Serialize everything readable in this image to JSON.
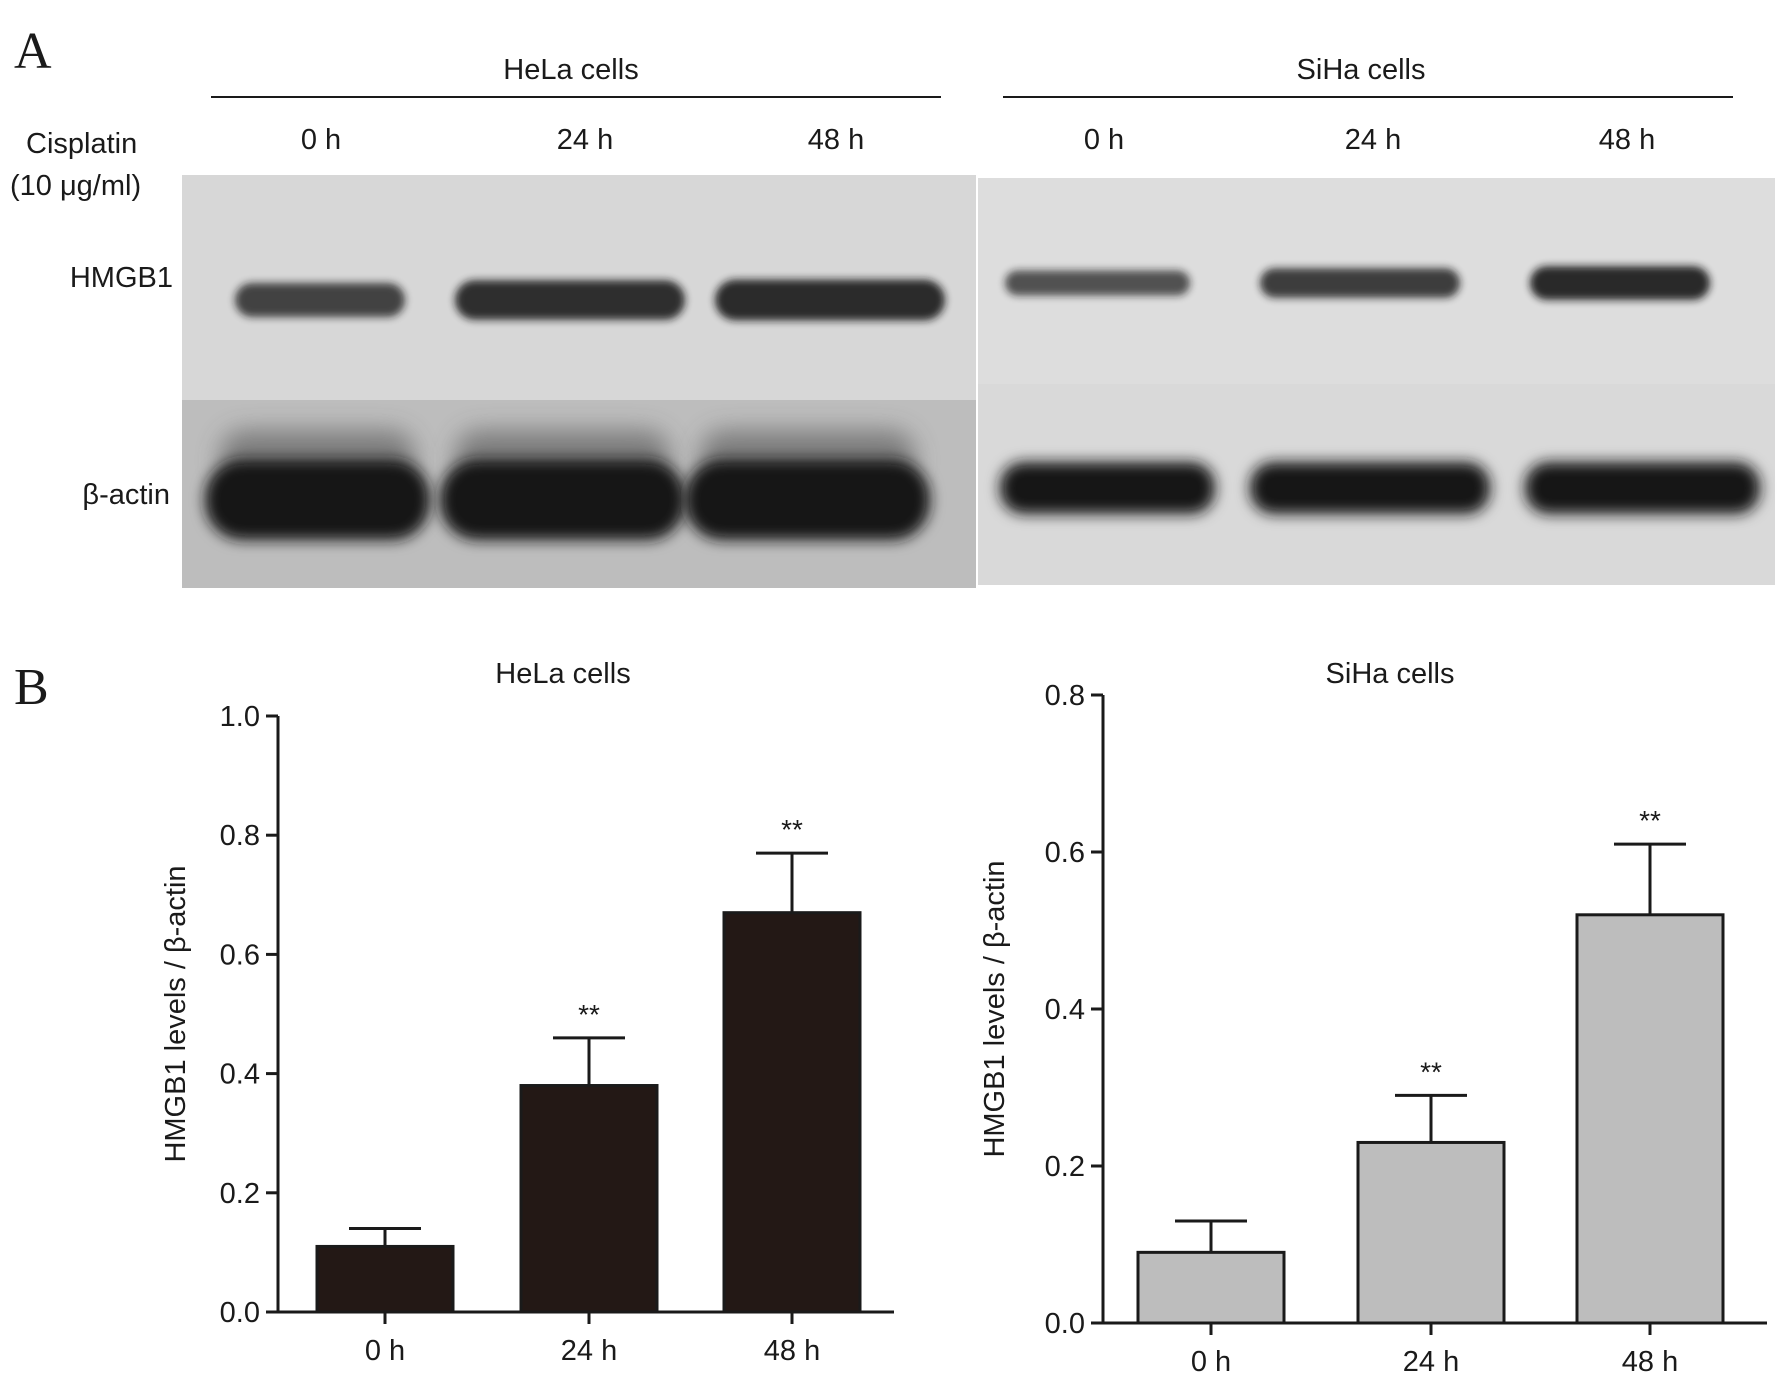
{
  "panel_a": {
    "letter": "A",
    "groups": [
      {
        "label": "HeLa cells",
        "lanes": [
          "0 h",
          "24 h",
          "48 h"
        ]
      },
      {
        "label": "SiHa cells",
        "lanes": [
          "0 h",
          "24 h",
          "48 h"
        ]
      }
    ],
    "treatment_line1": "Cisplatin",
    "treatment_line2": "(10 μg/ml)",
    "rows": [
      "HMGB1",
      "β-actin"
    ],
    "hela_hmgb1_intensity": [
      0.55,
      0.8,
      0.85
    ],
    "siha_hmgb1_intensity": [
      0.5,
      0.7,
      0.9
    ],
    "band_color": "#141414"
  },
  "panel_b": {
    "letter": "B"
  },
  "chart_data": [
    {
      "type": "bar",
      "title": "HeLa cells",
      "ylabel": "HMGB1 levels / β-actin",
      "xlabel": "",
      "categories": [
        "0 h",
        "24 h",
        "48 h"
      ],
      "values": [
        0.11,
        0.38,
        0.67
      ],
      "errors": [
        0.03,
        0.08,
        0.1
      ],
      "annotations": [
        "",
        "**",
        "**"
      ],
      "ylim": [
        0,
        1.0
      ],
      "yticks": [
        "0.0",
        "0.2",
        "0.4",
        "0.6",
        "0.8",
        "1.0"
      ],
      "bar_color": "#231815",
      "grid": false
    },
    {
      "type": "bar",
      "title": "SiHa cells",
      "ylabel": "HMGB1 levels / β-actin",
      "xlabel": "",
      "categories": [
        "0 h",
        "24 h",
        "48 h"
      ],
      "values": [
        0.09,
        0.23,
        0.52
      ],
      "errors": [
        0.04,
        0.06,
        0.09
      ],
      "annotations": [
        "",
        "**",
        "**"
      ],
      "ylim": [
        0,
        0.8
      ],
      "yticks": [
        "0.0",
        "0.2",
        "0.4",
        "0.6",
        "0.8"
      ],
      "bar_color": "#bdbdbd",
      "grid": false
    }
  ]
}
